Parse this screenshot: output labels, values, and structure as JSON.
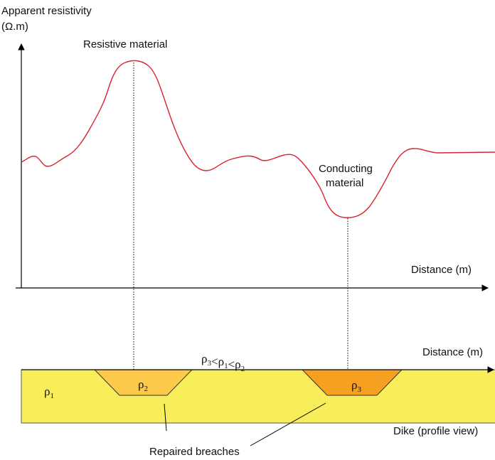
{
  "axis": {
    "y_label_line1": "Apparent resistivity",
    "y_label_line2": "(Ω.m)",
    "x_label": "Distance (m)"
  },
  "annotations": {
    "resistive": "Resistive material",
    "conducting_line1": "Conducting",
    "conducting_line2": "material"
  },
  "dike": {
    "x_label": "Distance (m)",
    "relation": [
      {
        "symbol": "ρ",
        "sub": "3"
      },
      {
        "symbol": "<ρ",
        "sub": "1"
      },
      {
        "symbol": "<ρ",
        "sub": "2"
      }
    ],
    "rho1": {
      "symbol": "ρ",
      "sub": "1"
    },
    "rho2": {
      "symbol": "ρ",
      "sub": "2"
    },
    "rho3": {
      "symbol": "ρ",
      "sub": "3"
    },
    "breaches_label": "Repaired breaches",
    "caption": "Dike (profile view)"
  }
}
